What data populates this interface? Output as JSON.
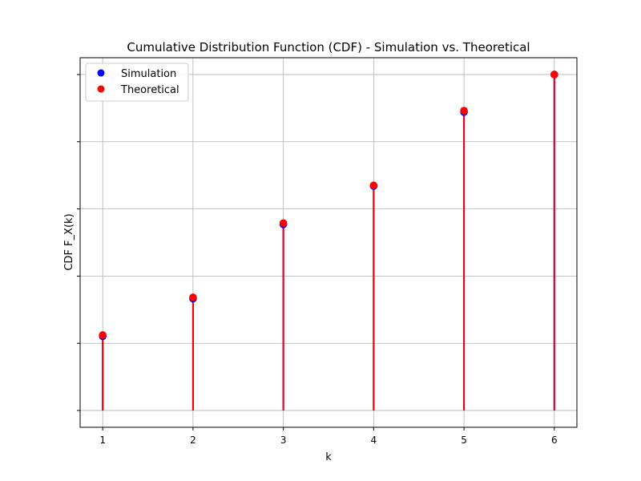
{
  "chart_data": {
    "type": "stem",
    "title": "Cumulative Distribution Function (CDF) - Simulation vs. Theoretical",
    "xlabel": "k",
    "ylabel": "CDF F_X(k)",
    "x": [
      1,
      2,
      3,
      4,
      5,
      6
    ],
    "xlim": [
      0.75,
      6.25
    ],
    "ylim": [
      -0.05,
      1.05
    ],
    "y_ticks": [
      0.0,
      0.2,
      0.4,
      0.6,
      0.8,
      1.0
    ],
    "y_tick_labels_visible": false,
    "grid": true,
    "legend_position": "top-left",
    "series": [
      {
        "name": "Simulation",
        "values": [
          0.221,
          0.333,
          0.554,
          0.668,
          0.888,
          1.0
        ],
        "color": "#0000ff"
      },
      {
        "name": "Theoretical",
        "values": [
          0.2245,
          0.3367,
          0.5578,
          0.6701,
          0.8924,
          1.0
        ],
        "color": "#ff0000"
      }
    ]
  }
}
